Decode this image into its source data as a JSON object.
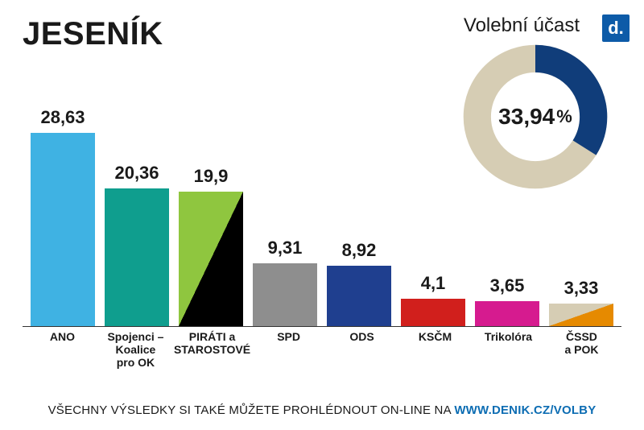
{
  "title": "JESENÍK",
  "logo_letter": "d.",
  "logo_bg": "#0d5ba8",
  "turnout": {
    "label": "Volební účast",
    "value_text": "33,94",
    "percent_sign": "%",
    "value": 33.94,
    "ring_bg": "#d6cdb4",
    "ring_fg": "#103d7a",
    "ring_thickness": 30
  },
  "chart": {
    "type": "bar",
    "max": 28.63,
    "baseline_color": "#333333",
    "bars": [
      {
        "label": "ANO",
        "value": 28.63,
        "value_text": "28,63",
        "colors": [
          "#3fb2e3"
        ],
        "split": false
      },
      {
        "label": "Spojenci – Koalice\npro OK",
        "value": 20.36,
        "value_text": "20,36",
        "colors": [
          "#0f9e8e"
        ],
        "split": false
      },
      {
        "label": "PIRÁTI a\nSTAROSTOVÉ",
        "value": 19.9,
        "value_text": "19,9",
        "colors": [
          "#8fc63f",
          "#000000"
        ],
        "split": true
      },
      {
        "label": "SPD",
        "value": 9.31,
        "value_text": "9,31",
        "colors": [
          "#8e8e8e"
        ],
        "split": false
      },
      {
        "label": "ODS",
        "value": 8.92,
        "value_text": "8,92",
        "colors": [
          "#1f3f8f"
        ],
        "split": false
      },
      {
        "label": "KSČM",
        "value": 4.1,
        "value_text": "4,1",
        "colors": [
          "#d11f1c"
        ],
        "split": false
      },
      {
        "label": "Trikolóra",
        "value": 3.65,
        "value_text": "3,65",
        "colors": [
          "#d61b8f"
        ],
        "split": false
      },
      {
        "label": "ČSSD\na POK",
        "value": 3.33,
        "value_text": "3,33",
        "colors": [
          "#d6cdb4",
          "#e68a00"
        ],
        "split": true
      }
    ]
  },
  "footer": {
    "text": "VŠECHNY VÝSLEDKY SI TAKÉ MŮŽETE PROHLÉDNOUT ON-LINE NA ",
    "link": "WWW.DENIK.CZ/VOLBY"
  }
}
